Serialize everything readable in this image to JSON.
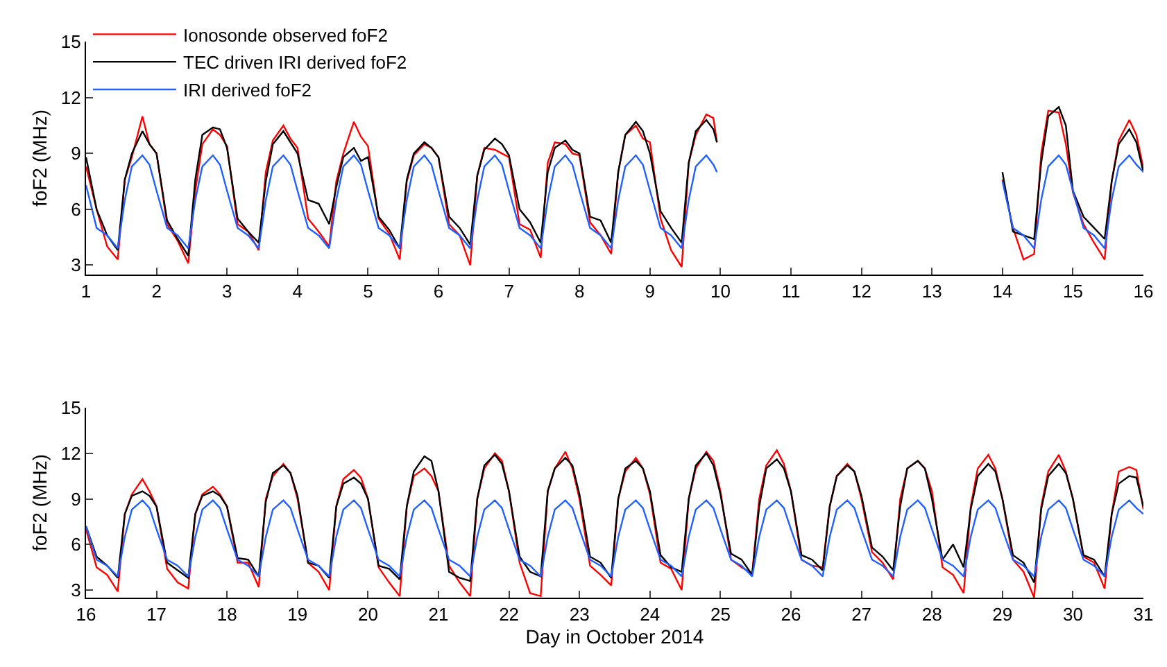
{
  "chart_data": [
    {
      "type": "line",
      "ylabel": "foF2 (MHz)",
      "legend": "top left",
      "x": [
        1,
        1.15,
        1.3,
        1.45,
        1.55,
        1.65,
        1.8,
        1.9,
        2,
        2.15,
        2.3,
        2.45,
        2.55,
        2.65,
        2.8,
        2.9,
        3,
        3.15,
        3.3,
        3.45,
        3.55,
        3.65,
        3.8,
        3.9,
        4,
        4.15,
        4.3,
        4.45,
        4.55,
        4.65,
        4.8,
        4.9,
        5,
        5.15,
        5.3,
        5.45,
        5.55,
        5.65,
        5.8,
        5.9,
        6,
        6.15,
        6.3,
        6.45,
        6.55,
        6.65,
        6.8,
        6.9,
        7,
        7.15,
        7.3,
        7.45,
        7.55,
        7.65,
        7.8,
        7.9,
        8,
        8.15,
        8.3,
        8.45,
        8.55,
        8.65,
        8.8,
        8.9,
        9,
        9.15,
        9.3,
        9.45,
        9.55,
        9.65,
        9.8,
        9.9,
        9.95,
        12,
        14,
        14.15,
        14.3,
        14.45,
        14.55,
        14.65,
        14.8,
        14.9,
        15,
        15.15,
        15.3,
        15.45,
        15.55,
        15.65,
        15.8,
        15.9,
        16
      ],
      "series": [
        {
          "name": "Ionosonde observed foF2",
          "color": "#ff0000",
          "values": [
            8.3,
            6.0,
            4.0,
            3.3,
            7.6,
            8.8,
            11.0,
            9.5,
            9.0,
            5.2,
            4.3,
            3.1,
            7.0,
            9.5,
            10.3,
            10.0,
            9.4,
            5.2,
            4.8,
            3.8,
            8.0,
            9.7,
            10.5,
            9.8,
            9.3,
            5.5,
            4.8,
            4.0,
            7.5,
            9.0,
            10.7,
            9.9,
            9.4,
            5.5,
            4.7,
            3.3,
            7.5,
            8.9,
            9.5,
            9.3,
            8.8,
            5.2,
            4.6,
            3.0,
            7.8,
            9.3,
            9.2,
            9.0,
            8.8,
            5.2,
            4.9,
            3.4,
            8.5,
            9.6,
            9.5,
            9.0,
            8.9,
            5.3,
            4.6,
            3.6,
            8.0,
            10.0,
            10.5,
            9.8,
            9.6,
            5.5,
            3.8,
            2.9,
            8.5,
            10.0,
            11.1,
            10.9,
            9.6,
            null,
            7.6,
            5.0,
            3.3,
            3.6,
            9.0,
            11.3,
            11.2,
            9.5,
            6.9,
            5.2,
            4.2,
            3.3,
            7.5,
            9.7,
            10.8,
            10.0,
            8.2
          ]
        },
        {
          "name": "TEC driven IRI derived foF2",
          "color": "#000000",
          "values": [
            8.8,
            6.0,
            4.6,
            3.8,
            7.6,
            9.0,
            10.2,
            9.5,
            9.0,
            5.4,
            4.4,
            3.5,
            7.6,
            10.0,
            10.4,
            10.3,
            9.3,
            5.5,
            4.8,
            4.2,
            7.5,
            9.5,
            10.2,
            9.6,
            9.0,
            6.5,
            6.3,
            5.2,
            7.2,
            8.8,
            9.3,
            8.6,
            8.8,
            5.6,
            4.9,
            3.9,
            7.6,
            9.0,
            9.6,
            9.3,
            8.8,
            5.6,
            5.0,
            4.1,
            7.8,
            9.2,
            9.8,
            9.5,
            8.9,
            6.0,
            5.3,
            4.2,
            8.0,
            9.3,
            9.7,
            9.2,
            9.0,
            5.6,
            5.4,
            4.2,
            8.0,
            10.0,
            10.7,
            10.2,
            9.0,
            5.9,
            5.0,
            4.2,
            8.5,
            10.2,
            10.8,
            10.3,
            9.6,
            null,
            8.0,
            4.8,
            4.6,
            4.4,
            8.5,
            11.0,
            11.5,
            10.5,
            7.0,
            5.6,
            5.0,
            4.4,
            7.5,
            9.5,
            10.3,
            9.6,
            8.0
          ]
        },
        {
          "name": "IRI derived foF2",
          "color": "#2060ff",
          "values": [
            7.3,
            5.0,
            4.6,
            3.9,
            6.5,
            8.3,
            8.9,
            8.4,
            7.0,
            5.0,
            4.6,
            3.9,
            6.5,
            8.3,
            8.9,
            8.4,
            7.0,
            5.0,
            4.6,
            3.9,
            6.5,
            8.3,
            8.9,
            8.4,
            7.0,
            5.0,
            4.6,
            3.9,
            6.5,
            8.3,
            8.9,
            8.4,
            7.0,
            5.0,
            4.6,
            3.9,
            6.5,
            8.3,
            8.9,
            8.4,
            7.0,
            5.0,
            4.6,
            3.9,
            6.5,
            8.3,
            8.9,
            8.4,
            7.0,
            5.0,
            4.6,
            3.9,
            6.5,
            8.3,
            8.9,
            8.4,
            7.0,
            5.0,
            4.6,
            3.9,
            6.5,
            8.3,
            8.9,
            8.4,
            7.0,
            5.0,
            4.6,
            3.9,
            6.5,
            8.3,
            8.9,
            8.4,
            8.0,
            null,
            7.5,
            5.0,
            4.6,
            3.9,
            6.5,
            8.3,
            8.9,
            8.4,
            7.0,
            5.0,
            4.6,
            3.9,
            6.5,
            8.3,
            8.9,
            8.4,
            8.0
          ]
        }
      ],
      "xlim": [
        1,
        16
      ],
      "xticks": [
        1,
        2,
        3,
        4,
        5,
        6,
        7,
        8,
        9,
        10,
        11,
        12,
        13,
        14,
        15,
        16
      ],
      "ylim": [
        2.5,
        15
      ],
      "yticks": [
        3,
        6,
        9,
        12,
        15
      ]
    },
    {
      "type": "line",
      "ylabel": "foF2 (MHz)",
      "xlabel": "Day in October 2014",
      "x": [
        16,
        16.15,
        16.3,
        16.45,
        16.55,
        16.65,
        16.8,
        16.9,
        17,
        17.15,
        17.3,
        17.45,
        17.55,
        17.65,
        17.8,
        17.9,
        18,
        18.15,
        18.3,
        18.45,
        18.55,
        18.65,
        18.8,
        18.9,
        19,
        19.15,
        19.3,
        19.45,
        19.55,
        19.65,
        19.8,
        19.9,
        20,
        20.15,
        20.3,
        20.45,
        20.55,
        20.65,
        20.8,
        20.9,
        21,
        21.15,
        21.3,
        21.45,
        21.55,
        21.65,
        21.8,
        21.9,
        22,
        22.15,
        22.3,
        22.45,
        22.55,
        22.65,
        22.8,
        22.9,
        23,
        23.15,
        23.3,
        23.45,
        23.55,
        23.65,
        23.8,
        23.9,
        24,
        24.15,
        24.3,
        24.45,
        24.55,
        24.65,
        24.8,
        24.9,
        25,
        25.15,
        25.3,
        25.45,
        25.55,
        25.65,
        25.8,
        25.9,
        26,
        26.15,
        26.3,
        26.45,
        26.55,
        26.65,
        26.8,
        26.9,
        27,
        27.15,
        27.3,
        27.45,
        27.55,
        27.65,
        27.8,
        27.9,
        28,
        28.15,
        28.3,
        28.45,
        28.55,
        28.65,
        28.8,
        28.9,
        29,
        29.15,
        29.3,
        29.45,
        29.55,
        29.65,
        29.8,
        29.9,
        30,
        30.15,
        30.3,
        30.45,
        30.55,
        30.65,
        30.8,
        30.9,
        31
      ],
      "series": [
        {
          "color": "#ff0000",
          "values": [
            7.0,
            4.5,
            4.0,
            2.9,
            8.0,
            9.3,
            10.3,
            9.5,
            8.5,
            4.4,
            3.5,
            3.1,
            8.0,
            9.3,
            9.8,
            9.3,
            8.5,
            4.8,
            4.8,
            3.2,
            9.0,
            10.5,
            11.3,
            10.7,
            9.0,
            4.8,
            4.2,
            3.0,
            8.5,
            10.3,
            10.9,
            10.4,
            9.0,
            4.5,
            3.5,
            2.6,
            8.5,
            10.5,
            11.0,
            10.5,
            9.5,
            4.6,
            3.5,
            2.6,
            9.0,
            11.0,
            12.0,
            11.5,
            9.5,
            4.8,
            2.8,
            2.6,
            9.5,
            11.0,
            12.1,
            11.0,
            9.0,
            4.6,
            4.0,
            3.3,
            9.0,
            10.8,
            11.7,
            11.0,
            9.3,
            4.8,
            4.4,
            3.0,
            9.0,
            11.0,
            12.1,
            11.5,
            9.5,
            5.0,
            4.5,
            4.1,
            9.0,
            11.2,
            12.2,
            11.3,
            9.5,
            5.0,
            4.6,
            4.5,
            8.5,
            10.5,
            11.3,
            10.8,
            9.0,
            5.5,
            4.8,
            3.7,
            9.0,
            11.0,
            11.5,
            11.0,
            9.5,
            4.5,
            4.0,
            2.8,
            8.5,
            11.0,
            11.9,
            11.0,
            9.0,
            5.0,
            4.2,
            2.5,
            8.5,
            10.8,
            11.9,
            10.8,
            9.0,
            5.2,
            4.8,
            3.1,
            8.0,
            10.8,
            11.1,
            10.9,
            8.3
          ]
        },
        {
          "color": "#000000",
          "values": [
            7.2,
            5.2,
            4.6,
            3.8,
            8.0,
            9.2,
            9.5,
            9.2,
            8.5,
            4.8,
            4.3,
            3.8,
            8.0,
            9.2,
            9.5,
            9.2,
            8.5,
            5.1,
            5.0,
            3.9,
            8.8,
            10.7,
            11.2,
            10.7,
            9.2,
            4.8,
            4.6,
            3.8,
            8.5,
            10.0,
            10.4,
            10.0,
            9.0,
            4.6,
            4.4,
            3.7,
            8.5,
            10.8,
            11.8,
            11.5,
            9.5,
            4.2,
            3.8,
            3.6,
            9.0,
            11.2,
            11.9,
            11.3,
            9.5,
            5.2,
            4.2,
            3.9,
            9.5,
            11.0,
            11.7,
            11.2,
            9.3,
            5.2,
            4.8,
            3.8,
            9.0,
            11.0,
            11.5,
            11.0,
            9.5,
            5.3,
            4.5,
            4.2,
            9.0,
            11.2,
            12.0,
            11.2,
            9.3,
            5.4,
            5.0,
            4.0,
            8.5,
            11.0,
            11.6,
            11.0,
            9.5,
            5.3,
            5.0,
            4.3,
            8.5,
            10.5,
            11.2,
            10.8,
            9.2,
            5.8,
            5.2,
            4.3,
            8.5,
            11.0,
            11.5,
            11.0,
            9.0,
            5.0,
            6.0,
            4.5,
            8.3,
            10.5,
            11.3,
            10.8,
            9.0,
            5.3,
            4.8,
            3.5,
            8.3,
            10.5,
            11.3,
            10.7,
            9.0,
            5.3,
            5.0,
            3.9,
            8.0,
            10.0,
            10.5,
            10.4,
            8.5
          ]
        },
        {
          "color": "#2060ff",
          "values": [
            7.2,
            5.0,
            4.6,
            3.9,
            6.5,
            8.3,
            8.9,
            8.4,
            7.0,
            5.0,
            4.6,
            3.9,
            6.5,
            8.3,
            8.9,
            8.4,
            7.0,
            5.0,
            4.6,
            3.9,
            6.5,
            8.3,
            8.9,
            8.4,
            7.0,
            5.0,
            4.6,
            3.9,
            6.5,
            8.3,
            8.9,
            8.4,
            7.0,
            5.0,
            4.6,
            3.9,
            6.5,
            8.3,
            8.9,
            8.4,
            7.0,
            5.0,
            4.6,
            3.9,
            6.5,
            8.3,
            8.9,
            8.4,
            7.0,
            5.0,
            4.6,
            3.9,
            6.5,
            8.3,
            8.9,
            8.4,
            7.0,
            5.0,
            4.6,
            3.9,
            6.5,
            8.3,
            8.9,
            8.4,
            7.0,
            5.0,
            4.6,
            3.9,
            6.5,
            8.3,
            8.9,
            8.4,
            7.0,
            5.0,
            4.6,
            3.9,
            6.5,
            8.3,
            8.9,
            8.4,
            7.0,
            5.0,
            4.6,
            3.9,
            6.5,
            8.3,
            8.9,
            8.4,
            7.0,
            5.0,
            4.6,
            3.9,
            6.5,
            8.3,
            8.9,
            8.4,
            7.0,
            5.0,
            4.6,
            3.9,
            6.5,
            8.3,
            8.9,
            8.4,
            7.0,
            5.0,
            4.6,
            3.9,
            6.5,
            8.3,
            8.9,
            8.4,
            7.0,
            5.0,
            4.6,
            3.9,
            6.5,
            8.3,
            8.9,
            8.4,
            8.0
          ]
        }
      ],
      "xlim": [
        16,
        31
      ],
      "xticks": [
        16,
        17,
        18,
        19,
        20,
        21,
        22,
        23,
        24,
        25,
        26,
        27,
        28,
        29,
        30,
        31
      ],
      "ylim": [
        2.5,
        15
      ],
      "yticks": [
        3,
        6,
        9,
        12,
        15
      ]
    }
  ]
}
